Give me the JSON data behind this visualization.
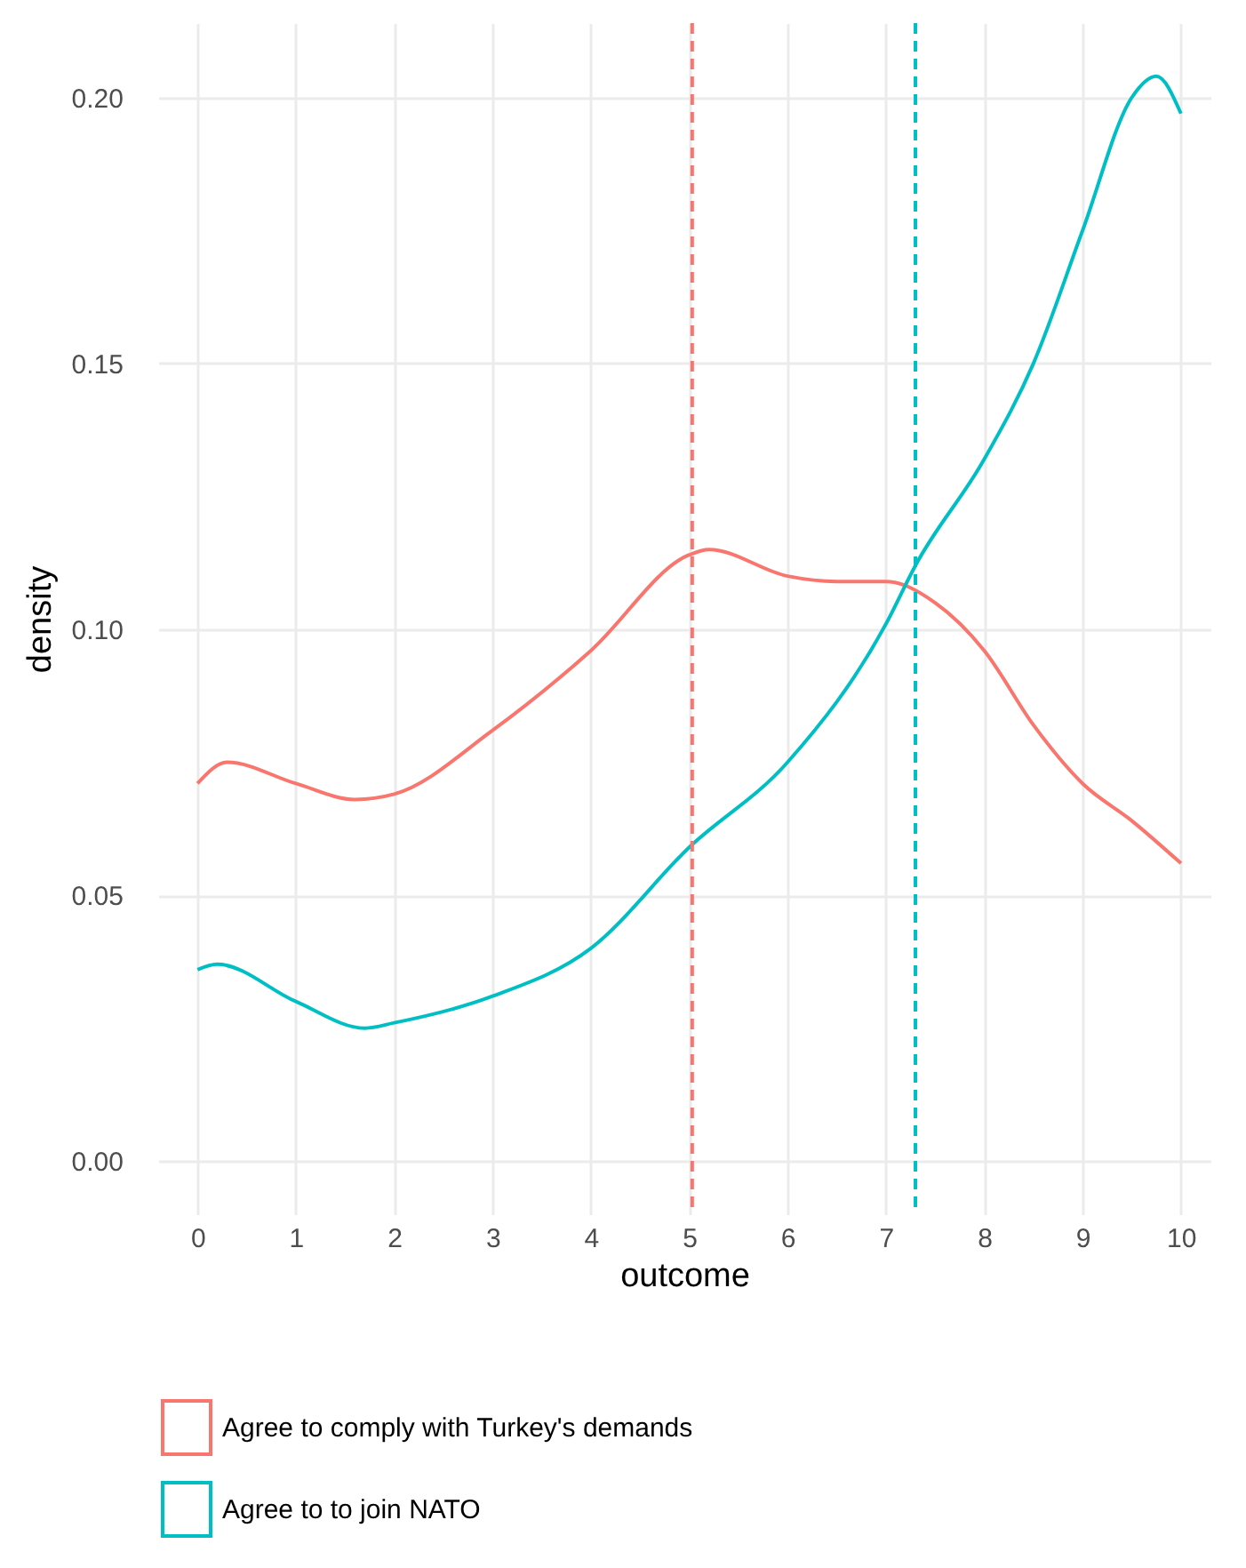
{
  "chart_data": {
    "type": "line",
    "xlabel": "outcome",
    "ylabel": "density",
    "x": [
      0,
      0.3,
      1,
      1.6,
      2,
      3,
      4,
      5,
      5.2,
      6,
      6.5,
      7,
      7.5,
      8,
      8.5,
      9,
      9.5,
      10
    ],
    "series": [
      {
        "name": "Agree to comply with Turkey's demands",
        "color": "#f8766d",
        "values": [
          0.071,
          0.075,
          0.071,
          0.068,
          0.069,
          0.081,
          0.096,
          0.114,
          0.115,
          0.11,
          0.109,
          0.109,
          0.105,
          0.096,
          0.082,
          0.071,
          0.064,
          0.056
        ]
      },
      {
        "name": "Agree to to join NATO",
        "color": "#00bfc4",
        "x": [
          0,
          0.2,
          1,
          1.7,
          2,
          3,
          4,
          5,
          6,
          7,
          7.3,
          8,
          8.5,
          9,
          9.5,
          9.75,
          10
        ],
        "values": [
          0.036,
          0.037,
          0.03,
          0.025,
          0.026,
          0.031,
          0.04,
          0.059,
          0.075,
          0.101,
          0.112,
          0.132,
          0.15,
          0.175,
          0.2,
          0.204,
          0.197
        ]
      }
    ],
    "ref_lines": [
      {
        "axis": "x",
        "value": 5.03,
        "color": "#f8766d",
        "line_style": "dashed"
      },
      {
        "axis": "x",
        "value": 7.3,
        "color": "#00bfc4",
        "line_style": "dashed"
      }
    ],
    "xlim": [
      -0.4,
      10.3
    ],
    "ylim": [
      -0.01,
      0.214
    ],
    "xticks": [
      0,
      1,
      2,
      3,
      4,
      5,
      6,
      7,
      8,
      9,
      10
    ],
    "yticks": [
      {
        "value": 0,
        "label": "0.00"
      },
      {
        "value": 0.05,
        "label": "0.05"
      },
      {
        "value": 0.1,
        "label": "0.10"
      },
      {
        "value": 0.15,
        "label": "0.15"
      },
      {
        "value": 0.2,
        "label": "0.20"
      }
    ],
    "grid": true,
    "legend": "bottom",
    "line_style": "solid",
    "marker": "none"
  }
}
